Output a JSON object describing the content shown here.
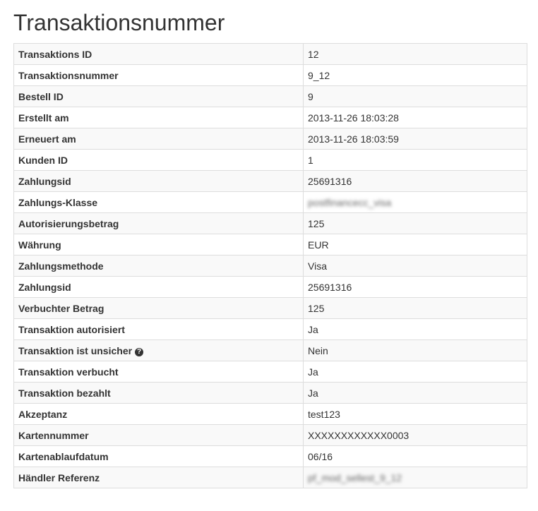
{
  "title": "Transaktionsnummer",
  "rows": [
    {
      "label": "Transaktions ID",
      "value": "12"
    },
    {
      "label": "Transaktionsnummer",
      "value": "9_12"
    },
    {
      "label": "Bestell ID",
      "value": "9"
    },
    {
      "label": "Erstellt am",
      "value": "2013-11-26 18:03:28"
    },
    {
      "label": "Erneuert am",
      "value": "2013-11-26 18:03:59"
    },
    {
      "label": "Kunden ID",
      "value": "1"
    },
    {
      "label": "Zahlungsid",
      "value": "25691316"
    },
    {
      "label": "Zahlungs-Klasse",
      "value": "postfinancecc_visa",
      "blurred": true
    },
    {
      "label": "Autorisierungsbetrag",
      "value": "125"
    },
    {
      "label": "Währung",
      "value": "EUR"
    },
    {
      "label": "Zahlungsmethode",
      "value": "Visa"
    },
    {
      "label": "Zahlungsid",
      "value": "25691316"
    },
    {
      "label": "Verbuchter Betrag",
      "value": "125"
    },
    {
      "label": "Transaktion autorisiert",
      "value": "Ja"
    },
    {
      "label": "Transaktion ist unsicher",
      "value": "Nein",
      "icon": "question-circle-icon"
    },
    {
      "label": "Transaktion verbucht",
      "value": "Ja"
    },
    {
      "label": "Transaktion bezahlt",
      "value": "Ja"
    },
    {
      "label": "Akzeptanz",
      "value": "test123"
    },
    {
      "label": "Kartennummer",
      "value": "XXXXXXXXXXXX0003"
    },
    {
      "label": "Kartenablaufdatum",
      "value": "06/16"
    },
    {
      "label": "Händler Referenz",
      "value": "pf_mod_sellest_9_12",
      "blurred": true
    }
  ]
}
